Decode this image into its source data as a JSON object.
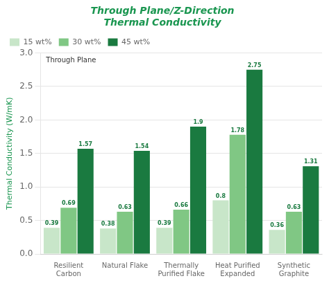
{
  "chart_data": {
    "type": "bar",
    "title": [
      "Through Plane/Z-Direction",
      "Thermal Conductivity"
    ],
    "ylabel": "Thermal Conductivity (W/mK)",
    "annotation": "Through Plane",
    "categories": [
      "Resilient\nCarbon",
      "Natural Flake",
      "Thermally\nPurified Flake",
      "Heat Purified\nExpanded",
      "Synthetic\nGraphite"
    ],
    "series": [
      {
        "name": "15 wt%",
        "color": "#c8e6c9",
        "values": [
          0.39,
          0.38,
          0.39,
          0.8,
          0.36
        ]
      },
      {
        "name": "30 wt%",
        "color": "#80c784",
        "values": [
          0.69,
          0.63,
          0.66,
          1.78,
          0.63
        ]
      },
      {
        "name": "45 wt%",
        "color": "#1a7a40",
        "values": [
          1.57,
          1.54,
          1.9,
          2.75,
          1.31
        ]
      }
    ],
    "ylim": [
      0,
      3.0
    ],
    "yticks": [
      {
        "value": 0.0,
        "label": "0.0"
      },
      0.5,
      {
        "value": 1.0,
        "label": "1.0"
      },
      1.5,
      {
        "value": 2.0,
        "label": "2.0"
      },
      2.5,
      {
        "value": 3.0,
        "label": "3.0"
      }
    ],
    "grid": true,
    "legend": "upper left",
    "data_labels": true
  }
}
